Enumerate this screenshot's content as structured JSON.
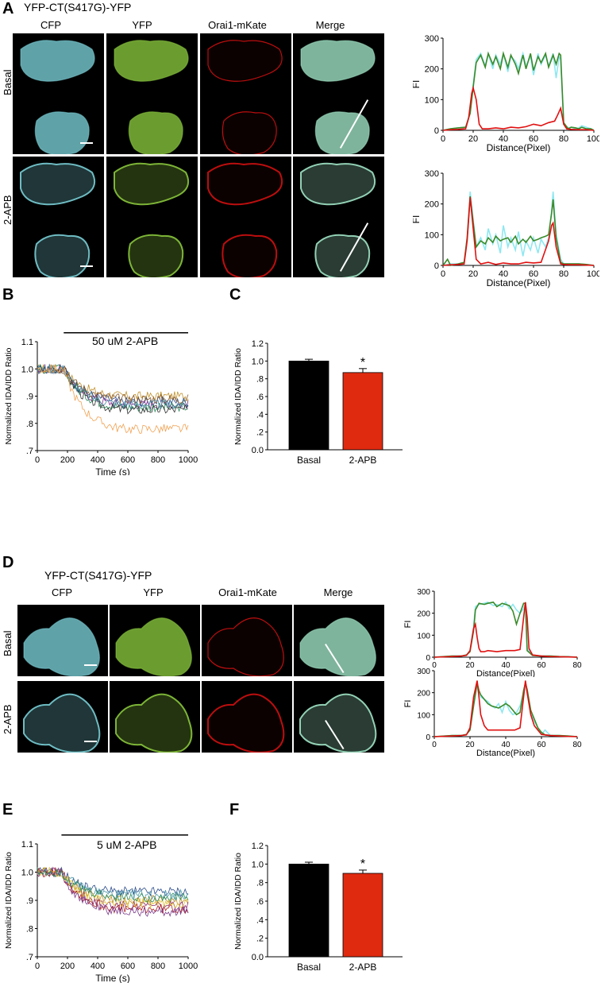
{
  "panels": {
    "A": {
      "letter": "A",
      "construct": "YFP-CT(S417G)-YFP",
      "columns": [
        "CFP",
        "YFP",
        "Orai1-mKate",
        "Merge"
      ],
      "rows": [
        "Basal",
        "2-APB"
      ]
    },
    "B": {
      "letter": "B",
      "treatment": "50 uM 2-APB"
    },
    "C": {
      "letter": "C"
    },
    "D": {
      "letter": "D",
      "construct": "YFP-CT(S417G)-YFP",
      "columns": [
        "CFP",
        "YFP",
        "Orai1-mKate",
        "Merge"
      ],
      "rows": [
        "Basal",
        "2-APB"
      ]
    },
    "E": {
      "letter": "E",
      "treatment": "5 uM 2-APB"
    },
    "F": {
      "letter": "F"
    }
  },
  "colors": {
    "cfp": "#8ee8f0",
    "yfp": "#3a8a2a",
    "mkate": "#e01010",
    "bar_basal": "#000000",
    "bar_apb": "#e02a10"
  },
  "chart_data": [
    {
      "id": "A-profile-basal",
      "type": "line",
      "xlabel": "Distance(Pixel)",
      "ylabel": "FI",
      "xlim": [
        0,
        100
      ],
      "ylim": [
        0,
        300
      ],
      "xticks": [
        "0",
        "20",
        "40",
        "60",
        "80",
        "100"
      ],
      "yticks": [
        "0",
        "100",
        "200",
        "300"
      ],
      "series": [
        {
          "color": "#8ee8f0",
          "x": [
            0,
            5,
            10,
            15,
            18,
            20,
            22,
            25,
            28,
            30,
            33,
            35,
            38,
            40,
            43,
            45,
            48,
            50,
            53,
            55,
            58,
            60,
            63,
            65,
            68,
            70,
            73,
            75,
            77,
            78,
            80,
            83,
            85,
            88,
            90,
            92,
            95,
            98,
            100
          ],
          "y": [
            0,
            5,
            8,
            10,
            60,
            150,
            230,
            250,
            210,
            250,
            200,
            245,
            215,
            250,
            190,
            240,
            225,
            200,
            250,
            210,
            240,
            180,
            250,
            215,
            245,
            210,
            250,
            170,
            240,
            230,
            20,
            8,
            10,
            5,
            8,
            15,
            10,
            5,
            0
          ]
        },
        {
          "color": "#3a8a2a",
          "x": [
            0,
            5,
            10,
            15,
            18,
            20,
            22,
            25,
            28,
            30,
            33,
            35,
            38,
            40,
            43,
            45,
            48,
            50,
            53,
            55,
            58,
            60,
            63,
            65,
            68,
            70,
            73,
            75,
            77,
            78,
            80,
            83,
            85,
            88,
            90,
            92,
            95,
            98,
            100
          ],
          "y": [
            0,
            5,
            8,
            10,
            55,
            140,
            220,
            245,
            205,
            250,
            215,
            240,
            200,
            250,
            205,
            245,
            215,
            185,
            245,
            200,
            250,
            195,
            240,
            220,
            250,
            205,
            245,
            215,
            250,
            245,
            25,
            5,
            10,
            8,
            5,
            10,
            5,
            5,
            0
          ]
        },
        {
          "color": "#e01010",
          "x": [
            0,
            5,
            10,
            15,
            17,
            19,
            20,
            22,
            24,
            26,
            30,
            35,
            40,
            45,
            50,
            55,
            60,
            65,
            70,
            74,
            76,
            78,
            80,
            82,
            85,
            90,
            95,
            100
          ],
          "y": [
            0,
            2,
            3,
            5,
            40,
            120,
            138,
            100,
            20,
            5,
            5,
            8,
            5,
            10,
            8,
            12,
            20,
            15,
            25,
            30,
            50,
            72,
            20,
            5,
            3,
            2,
            2,
            0
          ]
        }
      ]
    },
    {
      "id": "A-profile-apb",
      "type": "line",
      "xlabel": "Distance(Pixel)",
      "ylabel": "FI",
      "xlim": [
        0,
        100
      ],
      "ylim": [
        0,
        300
      ],
      "xticks": [
        "0",
        "20",
        "40",
        "60",
        "80",
        "100"
      ],
      "yticks": [
        "0",
        "100",
        "200",
        "300"
      ],
      "series": [
        {
          "color": "#8ee8f0",
          "x": [
            0,
            5,
            10,
            14,
            16,
            18,
            20,
            22,
            25,
            28,
            30,
            33,
            35,
            38,
            40,
            43,
            45,
            48,
            50,
            53,
            55,
            58,
            60,
            63,
            65,
            68,
            70,
            72,
            73,
            75,
            78,
            80,
            85,
            90,
            95,
            100
          ],
          "y": [
            0,
            5,
            5,
            10,
            90,
            240,
            150,
            60,
            90,
            50,
            120,
            70,
            100,
            40,
            130,
            60,
            90,
            50,
            110,
            30,
            80,
            50,
            90,
            40,
            85,
            60,
            90,
            180,
            240,
            100,
            20,
            5,
            5,
            5,
            3,
            0
          ]
        },
        {
          "color": "#3a8a2a",
          "x": [
            0,
            3,
            5,
            10,
            14,
            16,
            18,
            20,
            22,
            25,
            28,
            30,
            33,
            35,
            38,
            40,
            43,
            45,
            48,
            50,
            53,
            55,
            58,
            60,
            63,
            65,
            68,
            70,
            72,
            73,
            75,
            78,
            80,
            85,
            90,
            95,
            100
          ],
          "y": [
            0,
            20,
            0,
            5,
            10,
            90,
            225,
            140,
            60,
            80,
            70,
            90,
            75,
            95,
            80,
            85,
            90,
            75,
            95,
            70,
            85,
            75,
            95,
            80,
            85,
            90,
            95,
            100,
            170,
            215,
            90,
            10,
            5,
            5,
            5,
            3,
            0
          ]
        },
        {
          "color": "#e01010",
          "x": [
            0,
            5,
            10,
            14,
            16,
            18,
            20,
            22,
            25,
            30,
            35,
            40,
            45,
            50,
            55,
            60,
            65,
            70,
            72,
            73,
            75,
            78,
            80,
            85,
            90,
            95,
            100
          ],
          "y": [
            0,
            2,
            3,
            5,
            80,
            222,
            120,
            20,
            5,
            10,
            3,
            8,
            5,
            5,
            10,
            8,
            10,
            80,
            130,
            138,
            60,
            5,
            3,
            2,
            2,
            1,
            0
          ]
        }
      ]
    },
    {
      "id": "B-timecourse",
      "type": "line",
      "xlabel": "Time (s)",
      "ylabel": "Normalized IDA/IDD Ratio",
      "xlim": [
        0,
        1000
      ],
      "ylim": [
        0.7,
        1.1
      ],
      "xticks": [
        "0",
        "200",
        "400",
        "600",
        "800",
        "1000"
      ],
      "yticks": [
        ".7",
        ".8",
        ".9",
        "1.0",
        "1.1"
      ],
      "treatment_start": 175,
      "treatment_end": 1000,
      "traces_final": [
        0.9,
        0.88,
        0.87,
        0.86,
        0.85,
        0.89,
        0.87,
        0.78
      ],
      "traces_colors": [
        "#c0902a",
        "#2a4a8a",
        "#7a2a8a",
        "#2a8a5a",
        "#303030",
        "#8a5a2a",
        "#4a8aaa",
        "#f0a050"
      ]
    },
    {
      "id": "C-bars",
      "type": "bar",
      "ylabel": "Normalized IDA/IDD Ratio",
      "categories": [
        "Basal",
        "2-APB"
      ],
      "values": [
        1.0,
        0.87
      ],
      "errors": [
        0.02,
        0.045
      ],
      "ylim": [
        0,
        1.2
      ],
      "yticks": [
        "0.0",
        ".2",
        ".4",
        ".6",
        ".8",
        "1.0",
        "1.2"
      ],
      "significance": [
        "",
        "*"
      ]
    },
    {
      "id": "D-profile-basal",
      "type": "line",
      "xlabel": "Distance(Pixel)",
      "ylabel": "FI",
      "xlim": [
        0,
        80
      ],
      "ylim": [
        0,
        300
      ],
      "xticks": [
        "0",
        "20",
        "40",
        "60",
        "80"
      ],
      "yticks": [
        "0",
        "100",
        "200",
        "300"
      ],
      "series": [
        {
          "color": "#8ee8f0",
          "x": [
            0,
            10,
            15,
            18,
            20,
            22,
            23,
            25,
            28,
            30,
            33,
            35,
            38,
            40,
            42,
            44,
            46,
            48,
            50,
            51,
            52,
            55,
            60,
            65,
            70,
            75,
            80
          ],
          "y": [
            0,
            5,
            5,
            10,
            30,
            140,
            230,
            240,
            245,
            250,
            235,
            240,
            230,
            250,
            220,
            240,
            215,
            200,
            220,
            250,
            40,
            10,
            5,
            5,
            3,
            2,
            0
          ]
        },
        {
          "color": "#3a8a2a",
          "x": [
            0,
            10,
            15,
            18,
            20,
            22,
            23,
            25,
            28,
            30,
            33,
            35,
            38,
            40,
            42,
            44,
            46,
            48,
            50,
            51,
            52,
            55,
            60,
            65,
            70,
            75,
            80
          ],
          "y": [
            0,
            5,
            5,
            10,
            25,
            120,
            215,
            245,
            240,
            245,
            250,
            230,
            245,
            240,
            235,
            210,
            150,
            200,
            245,
            245,
            30,
            8,
            5,
            5,
            3,
            2,
            0
          ]
        },
        {
          "color": "#e01010",
          "x": [
            0,
            10,
            15,
            18,
            20,
            22,
            23,
            24,
            25,
            26,
            28,
            30,
            35,
            40,
            45,
            48,
            50,
            51,
            52,
            53,
            55,
            60,
            65,
            70,
            75,
            80
          ],
          "y": [
            0,
            3,
            5,
            8,
            30,
            130,
            150,
            90,
            40,
            25,
            25,
            30,
            25,
            30,
            30,
            35,
            180,
            250,
            180,
            40,
            10,
            5,
            3,
            2,
            1,
            0
          ]
        }
      ]
    },
    {
      "id": "D-profile-apb",
      "type": "line",
      "xlabel": "Distance(Pixel)",
      "ylabel": "FI",
      "xlim": [
        0,
        80
      ],
      "ylim": [
        0,
        300
      ],
      "xticks": [
        "0",
        "20",
        "40",
        "60",
        "80"
      ],
      "yticks": [
        "0",
        "100",
        "200",
        "300"
      ],
      "series": [
        {
          "color": "#8ee8f0",
          "x": [
            0,
            10,
            15,
            18,
            20,
            22,
            24,
            25,
            26,
            28,
            30,
            32,
            34,
            36,
            38,
            40,
            42,
            44,
            46,
            48,
            50,
            51,
            52,
            54,
            56,
            58,
            60,
            62,
            65,
            70,
            75,
            80
          ],
          "y": [
            0,
            5,
            5,
            10,
            30,
            140,
            240,
            200,
            180,
            170,
            160,
            140,
            130,
            150,
            110,
            160,
            120,
            100,
            110,
            140,
            200,
            240,
            200,
            110,
            70,
            40,
            10,
            30,
            5,
            5,
            3,
            0
          ]
        },
        {
          "color": "#3a8a2a",
          "x": [
            0,
            10,
            15,
            18,
            20,
            22,
            24,
            25,
            26,
            28,
            30,
            32,
            34,
            36,
            38,
            40,
            42,
            44,
            46,
            48,
            50,
            51,
            52,
            54,
            56,
            58,
            60,
            62,
            65,
            70,
            75,
            80
          ],
          "y": [
            0,
            5,
            5,
            10,
            30,
            140,
            245,
            210,
            190,
            170,
            150,
            140,
            135,
            130,
            140,
            150,
            140,
            120,
            100,
            110,
            210,
            245,
            215,
            120,
            80,
            40,
            20,
            8,
            5,
            5,
            3,
            0
          ]
        },
        {
          "color": "#e01010",
          "x": [
            0,
            10,
            15,
            18,
            20,
            22,
            24,
            25,
            26,
            28,
            30,
            35,
            40,
            45,
            48,
            50,
            51,
            52,
            54,
            56,
            58,
            60,
            65,
            70,
            75,
            80
          ],
          "y": [
            0,
            3,
            5,
            8,
            40,
            180,
            255,
            180,
            100,
            50,
            30,
            30,
            30,
            30,
            40,
            180,
            255,
            200,
            100,
            50,
            30,
            10,
            5,
            3,
            1,
            0
          ]
        }
      ]
    },
    {
      "id": "E-timecourse",
      "type": "line",
      "xlabel": "Time (s)",
      "ylabel": "Normalized IDA/IDD Ratio",
      "xlim": [
        0,
        1000
      ],
      "ylim": [
        0.7,
        1.1
      ],
      "xticks": [
        "0",
        "200",
        "400",
        "600",
        "800",
        "1000"
      ],
      "yticks": [
        ".7",
        ".8",
        ".9",
        "1.0",
        "1.1"
      ],
      "treatment_start": 160,
      "treatment_end": 1000,
      "traces_final": [
        0.93,
        0.92,
        0.9,
        0.88,
        0.87,
        0.89,
        0.86,
        0.91
      ],
      "traces_colors": [
        "#2a4a8a",
        "#4a9aaa",
        "#c0902a",
        "#8a2a6a",
        "#b02020",
        "#e0c030",
        "#7a3a8a",
        "#2a8a5a"
      ]
    },
    {
      "id": "F-bars",
      "type": "bar",
      "ylabel": "Normalized IDA/IDD Ratio",
      "categories": [
        "Basal",
        "2-APB"
      ],
      "values": [
        1.0,
        0.9
      ],
      "errors": [
        0.02,
        0.035
      ],
      "ylim": [
        0,
        1.2
      ],
      "yticks": [
        "0.0",
        ".2",
        ".4",
        ".6",
        ".8",
        "1.0",
        "1.2"
      ],
      "significance": [
        "",
        "*"
      ]
    }
  ]
}
